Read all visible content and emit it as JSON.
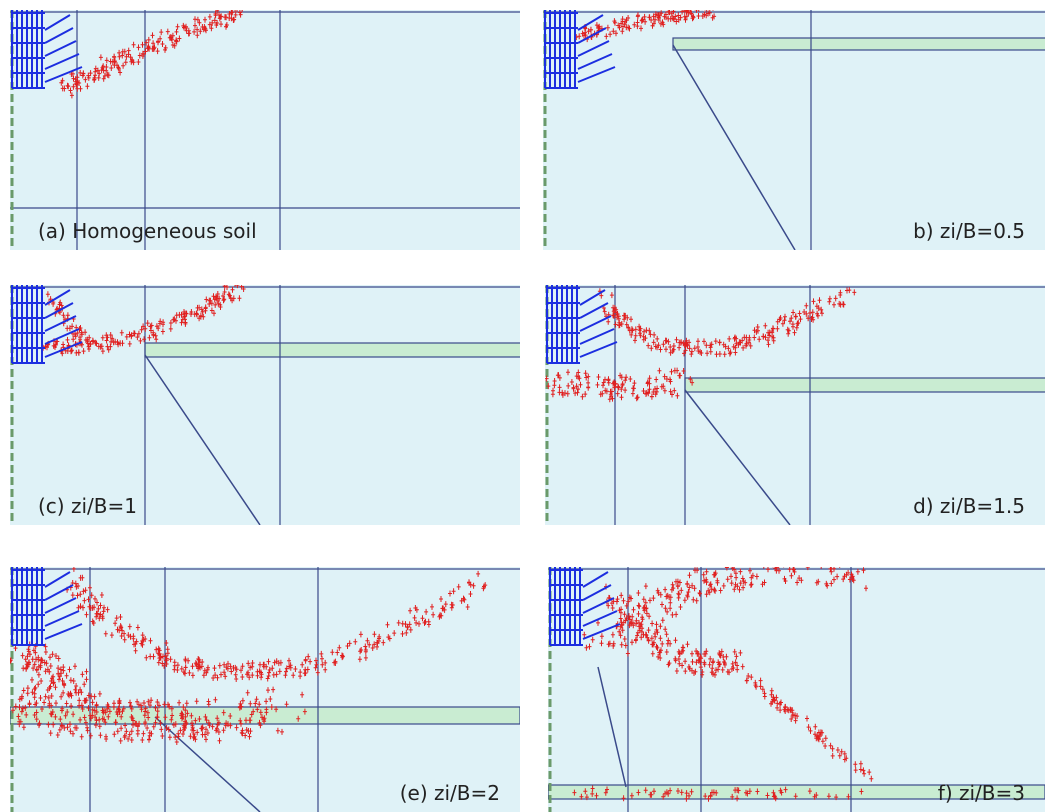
{
  "panels": [
    {
      "label": "(a) Homogeneous soil"
    },
    {
      "label": "b) zi/B=0.5"
    },
    {
      "label": "(c) zi/B=1"
    },
    {
      "label": "d) zi/B=1.5"
    },
    {
      "label": "(e) zi/B=2"
    },
    {
      "label": "f) zi/B=3"
    }
  ]
}
